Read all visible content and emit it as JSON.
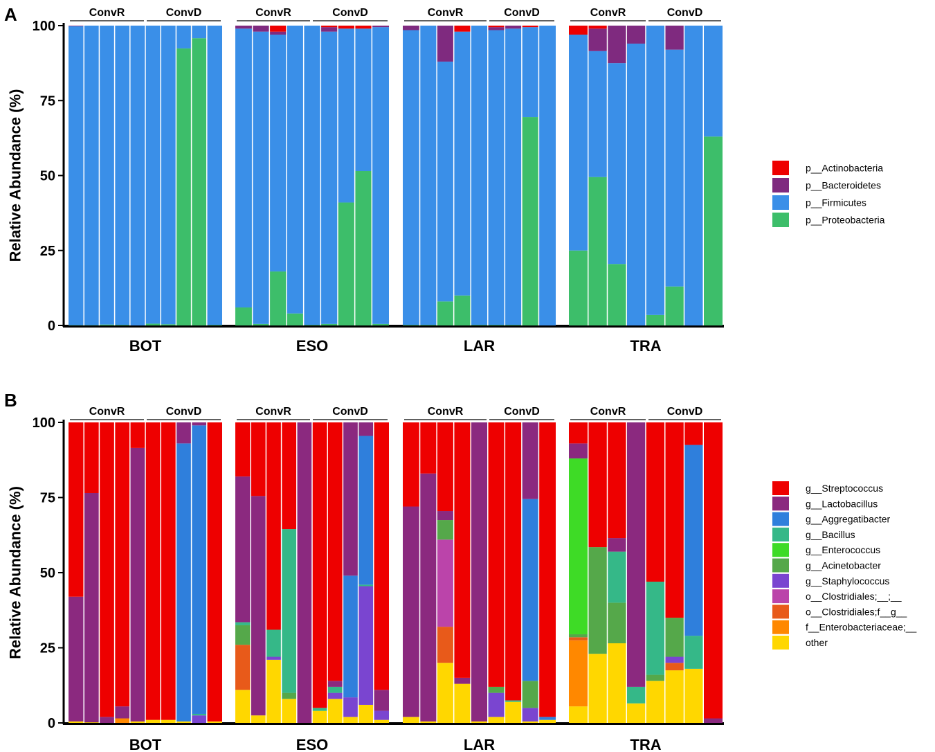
{
  "figure": {
    "panels": [
      "A",
      "B"
    ],
    "sites": [
      "BOT",
      "ESO",
      "LAR",
      "TRA"
    ],
    "groups": [
      "ConvR",
      "ConvD"
    ],
    "ylabel": "Relative Abundance (%)",
    "yticks": [
      "0",
      "25",
      "50",
      "75",
      "100"
    ]
  },
  "chart_data": [
    {
      "type": "bar",
      "stacked": true,
      "panel": "A",
      "title": "",
      "xlabel": "",
      "ylabel": "Relative Abundance (%)",
      "ylim": [
        0,
        100
      ],
      "facets": [
        "BOT",
        "ESO",
        "LAR",
        "TRA"
      ],
      "groups": [
        "ConvR",
        "ConvD"
      ],
      "legend": {
        "position": "right"
      },
      "series": [
        {
          "name": "p__Actinobacteria",
          "color": "#EE0000"
        },
        {
          "name": "p__Bacteroidetes",
          "color": "#7F2A7F"
        },
        {
          "name": "p__Firmicutes",
          "color": "#3A8FE8"
        },
        {
          "name": "p__Proteobacteria",
          "color": "#3DBE6A"
        }
      ],
      "samples": [
        {
          "site": "BOT",
          "group": "ConvR",
          "values": [
            0,
            0.2,
            99.7,
            0.1
          ]
        },
        {
          "site": "BOT",
          "group": "ConvR",
          "values": [
            0,
            0,
            99.9,
            0.1
          ]
        },
        {
          "site": "BOT",
          "group": "ConvR",
          "values": [
            0,
            0,
            99.7,
            0.3
          ]
        },
        {
          "site": "BOT",
          "group": "ConvR",
          "values": [
            0,
            0,
            99.8,
            0.2
          ]
        },
        {
          "site": "BOT",
          "group": "ConvR",
          "values": [
            0,
            0,
            100,
            0
          ]
        },
        {
          "site": "BOT",
          "group": "ConvD",
          "values": [
            0,
            0,
            99.4,
            0.6
          ]
        },
        {
          "site": "BOT",
          "group": "ConvD",
          "values": [
            0,
            0,
            99.6,
            0.4
          ]
        },
        {
          "site": "BOT",
          "group": "ConvD",
          "values": [
            0,
            0,
            7.6,
            92.4
          ]
        },
        {
          "site": "BOT",
          "group": "ConvD",
          "values": [
            0,
            0,
            4.2,
            95.8
          ]
        },
        {
          "site": "BOT",
          "group": "ConvD",
          "values": [
            0,
            0,
            99.8,
            0.2
          ]
        },
        {
          "site": "ESO",
          "group": "ConvR",
          "values": [
            0,
            1,
            93,
            6
          ]
        },
        {
          "site": "ESO",
          "group": "ConvR",
          "values": [
            0,
            2,
            97.5,
            0.5
          ]
        },
        {
          "site": "ESO",
          "group": "ConvR",
          "values": [
            2,
            1,
            79,
            18
          ]
        },
        {
          "site": "ESO",
          "group": "ConvR",
          "values": [
            0,
            0,
            96,
            4
          ]
        },
        {
          "site": "ESO",
          "group": "ConvD",
          "values": [
            0,
            0,
            99.8,
            0.2
          ]
        },
        {
          "site": "ESO",
          "group": "ConvD",
          "values": [
            0.5,
            1.5,
            97.5,
            0.5
          ]
        },
        {
          "site": "ESO",
          "group": "ConvD",
          "values": [
            1,
            0,
            58,
            41
          ]
        },
        {
          "site": "ESO",
          "group": "ConvD",
          "values": [
            1,
            0,
            47.5,
            51.5
          ]
        },
        {
          "site": "ESO",
          "group": "ConvD",
          "values": [
            0,
            0.5,
            99,
            0.5
          ]
        },
        {
          "site": "LAR",
          "group": "ConvR",
          "values": [
            0,
            1.5,
            98.3,
            0.2
          ]
        },
        {
          "site": "LAR",
          "group": "ConvR",
          "values": [
            0,
            0,
            99.8,
            0.2
          ]
        },
        {
          "site": "LAR",
          "group": "ConvR",
          "values": [
            0,
            12,
            80,
            8
          ]
        },
        {
          "site": "LAR",
          "group": "ConvR",
          "values": [
            2,
            0,
            88,
            10
          ]
        },
        {
          "site": "LAR",
          "group": "ConvR",
          "values": [
            0,
            0,
            99.8,
            0.2
          ]
        },
        {
          "site": "LAR",
          "group": "ConvD",
          "values": [
            0.5,
            1,
            98.3,
            0.2
          ]
        },
        {
          "site": "LAR",
          "group": "ConvD",
          "values": [
            0,
            1,
            98.8,
            0.2
          ]
        },
        {
          "site": "LAR",
          "group": "ConvD",
          "values": [
            0.5,
            0,
            30,
            69.5
          ]
        },
        {
          "site": "LAR",
          "group": "ConvD",
          "values": [
            0,
            0,
            100,
            0
          ]
        },
        {
          "site": "TRA",
          "group": "ConvR",
          "values": [
            3,
            0,
            72,
            25
          ]
        },
        {
          "site": "TRA",
          "group": "ConvR",
          "values": [
            1,
            7.5,
            42,
            49.5
          ]
        },
        {
          "site": "TRA",
          "group": "ConvR",
          "values": [
            0,
            12.5,
            67,
            20.5
          ]
        },
        {
          "site": "TRA",
          "group": "ConvR",
          "values": [
            0,
            6,
            94,
            0
          ]
        },
        {
          "site": "TRA",
          "group": "ConvD",
          "values": [
            0,
            0,
            96.5,
            3.5
          ]
        },
        {
          "site": "TRA",
          "group": "ConvD",
          "values": [
            0,
            8,
            79,
            13
          ]
        },
        {
          "site": "TRA",
          "group": "ConvD",
          "values": [
            0,
            0,
            100,
            0
          ]
        },
        {
          "site": "TRA",
          "group": "ConvD",
          "values": [
            0,
            0,
            37,
            63
          ]
        }
      ]
    },
    {
      "type": "bar",
      "stacked": true,
      "panel": "B",
      "title": "",
      "xlabel": "",
      "ylabel": "Relative Abundance (%)",
      "ylim": [
        0,
        100
      ],
      "facets": [
        "BOT",
        "ESO",
        "LAR",
        "TRA"
      ],
      "groups": [
        "ConvR",
        "ConvD"
      ],
      "legend": {
        "position": "right"
      },
      "series": [
        {
          "name": "g__Streptococcus",
          "color": "#EE0000"
        },
        {
          "name": "g__Lactobacillus",
          "color": "#8B297F"
        },
        {
          "name": "g__Aggregatibacter",
          "color": "#2F7FDC"
        },
        {
          "name": "g__Bacillus",
          "color": "#35B888"
        },
        {
          "name": "g__Enterococcus",
          "color": "#3EDB26"
        },
        {
          "name": "g__Acinetobacter",
          "color": "#55A84A"
        },
        {
          "name": "g__Staphylococcus",
          "color": "#7A45D0"
        },
        {
          "name": "o__Clostridiales;__;__",
          "color": "#BB44AA"
        },
        {
          "name": "o__Clostridiales;f__g__",
          "color": "#E85A1A"
        },
        {
          "name": "f__Enterobacteriaceae;__",
          "color": "#FF8800"
        },
        {
          "name": "other",
          "color": "#FFD700"
        }
      ],
      "samples": [
        {
          "site": "BOT",
          "group": "ConvR",
          "values": [
            58,
            41.5,
            0,
            0,
            0,
            0,
            0,
            0,
            0,
            0,
            0.5
          ]
        },
        {
          "site": "BOT",
          "group": "ConvR",
          "values": [
            23.5,
            76.3,
            0,
            0,
            0,
            0,
            0,
            0,
            0,
            0,
            0.2
          ]
        },
        {
          "site": "BOT",
          "group": "ConvR",
          "values": [
            98,
            2,
            0,
            0,
            0,
            0,
            0,
            0,
            0,
            0,
            0
          ]
        },
        {
          "site": "BOT",
          "group": "ConvR",
          "values": [
            94.5,
            4,
            0,
            0,
            0,
            0,
            0,
            0,
            0,
            1.5,
            0
          ]
        },
        {
          "site": "BOT",
          "group": "ConvR",
          "values": [
            8.5,
            91,
            0,
            0,
            0,
            0,
            0,
            0,
            0,
            0,
            0.5
          ]
        },
        {
          "site": "BOT",
          "group": "ConvD",
          "values": [
            99,
            0,
            0,
            0,
            0,
            0,
            0,
            0,
            0,
            0,
            1
          ]
        },
        {
          "site": "BOT",
          "group": "ConvD",
          "values": [
            99,
            0,
            0,
            0,
            0,
            0,
            0,
            0,
            0,
            0,
            1
          ]
        },
        {
          "site": "BOT",
          "group": "ConvD",
          "values": [
            0,
            7,
            92.5,
            0,
            0,
            0,
            0,
            0,
            0,
            0,
            0.5
          ]
        },
        {
          "site": "BOT",
          "group": "ConvD",
          "values": [
            0,
            1,
            96,
            0.5,
            0,
            0,
            2.5,
            0,
            0,
            0,
            0
          ]
        },
        {
          "site": "BOT",
          "group": "ConvD",
          "values": [
            99.5,
            0,
            0,
            0,
            0,
            0,
            0,
            0,
            0,
            0,
            0.5
          ]
        },
        {
          "site": "ESO",
          "group": "ConvR",
          "values": [
            18,
            48.5,
            0,
            1,
            0,
            6.5,
            0,
            0,
            15,
            0,
            11
          ]
        },
        {
          "site": "ESO",
          "group": "ConvR",
          "values": [
            24.5,
            73,
            0,
            0,
            0,
            0,
            0,
            0,
            0,
            0,
            2.5
          ]
        },
        {
          "site": "ESO",
          "group": "ConvR",
          "values": [
            69,
            0,
            0,
            9,
            0,
            0,
            1,
            0,
            0,
            0,
            21
          ]
        },
        {
          "site": "ESO",
          "group": "ConvR",
          "values": [
            35.5,
            0,
            0,
            54.5,
            0,
            2,
            0,
            0,
            0,
            0,
            8
          ]
        },
        {
          "site": "ESO",
          "group": "ConvR",
          "values": [
            0,
            100,
            0,
            0,
            0,
            0,
            0,
            0,
            0,
            0,
            0
          ]
        },
        {
          "site": "ESO",
          "group": "ConvD",
          "values": [
            95,
            0,
            0,
            1,
            0,
            0,
            0,
            0,
            0,
            0,
            4
          ]
        },
        {
          "site": "ESO",
          "group": "ConvD",
          "values": [
            86,
            2,
            0,
            2,
            0,
            0,
            2,
            0,
            0,
            0,
            8
          ]
        },
        {
          "site": "ESO",
          "group": "ConvD",
          "values": [
            0,
            51,
            40.5,
            0,
            0,
            0,
            6.5,
            0,
            0,
            0,
            2
          ]
        },
        {
          "site": "ESO",
          "group": "ConvD",
          "values": [
            0,
            4.5,
            49.5,
            0.5,
            0,
            0,
            39.5,
            0,
            0,
            0,
            6
          ]
        },
        {
          "site": "ESO",
          "group": "ConvD",
          "values": [
            89,
            7,
            0,
            0,
            0,
            0,
            3,
            0,
            0,
            0,
            1
          ]
        },
        {
          "site": "LAR",
          "group": "ConvR",
          "values": [
            28,
            70,
            0,
            0,
            0,
            0,
            0,
            0,
            0,
            0,
            2
          ]
        },
        {
          "site": "LAR",
          "group": "ConvR",
          "values": [
            17,
            82.5,
            0,
            0,
            0,
            0,
            0,
            0,
            0,
            0,
            0.5
          ]
        },
        {
          "site": "LAR",
          "group": "ConvR",
          "values": [
            29.5,
            3,
            0,
            0,
            0,
            6.5,
            0,
            29,
            12,
            0,
            20
          ]
        },
        {
          "site": "LAR",
          "group": "ConvR",
          "values": [
            85,
            2,
            0,
            0,
            0,
            0,
            0,
            0,
            0,
            0,
            13
          ]
        },
        {
          "site": "LAR",
          "group": "ConvR",
          "values": [
            0,
            99.5,
            0,
            0,
            0,
            0,
            0,
            0,
            0,
            0,
            0.5
          ]
        },
        {
          "site": "LAR",
          "group": "ConvD",
          "values": [
            88,
            0,
            0,
            0,
            0,
            2,
            8,
            0,
            0,
            0,
            2
          ]
        },
        {
          "site": "LAR",
          "group": "ConvD",
          "values": [
            92.5,
            0,
            0,
            0.5,
            0,
            0,
            0,
            0,
            0,
            0,
            7
          ]
        },
        {
          "site": "LAR",
          "group": "ConvD",
          "values": [
            0,
            25.5,
            60.5,
            0,
            0,
            9,
            4.5,
            0,
            0,
            0,
            0.5
          ]
        },
        {
          "site": "LAR",
          "group": "ConvD",
          "values": [
            98,
            0,
            1,
            0,
            0,
            0,
            0,
            0,
            0,
            0,
            1
          ]
        },
        {
          "site": "TRA",
          "group": "ConvR",
          "values": [
            7,
            5,
            0,
            0,
            58.5,
            1,
            0,
            0,
            1,
            22,
            5.5
          ]
        },
        {
          "site": "TRA",
          "group": "ConvR",
          "values": [
            41.5,
            0,
            0,
            0,
            0,
            35.5,
            0,
            0,
            0,
            0,
            23
          ]
        },
        {
          "site": "TRA",
          "group": "ConvR",
          "values": [
            38.5,
            4.5,
            0,
            17,
            0,
            13.5,
            0,
            0,
            0,
            0,
            26.5
          ]
        },
        {
          "site": "TRA",
          "group": "ConvR",
          "values": [
            0,
            88,
            0,
            5.5,
            0,
            0,
            0,
            0,
            0,
            0,
            6.5
          ]
        },
        {
          "site": "TRA",
          "group": "ConvD",
          "values": [
            53,
            0,
            0,
            31,
            0,
            2,
            0,
            0,
            0,
            0,
            14
          ]
        },
        {
          "site": "TRA",
          "group": "ConvD",
          "values": [
            65,
            0,
            0,
            0,
            0,
            13,
            2,
            0,
            2.5,
            0,
            17.5
          ]
        },
        {
          "site": "TRA",
          "group": "ConvD",
          "values": [
            7.5,
            0,
            63.5,
            11,
            0,
            0,
            0,
            0,
            0,
            0,
            18
          ]
        },
        {
          "site": "TRA",
          "group": "ConvD",
          "values": [
            98.5,
            1.5,
            0,
            0,
            0,
            0,
            0,
            0,
            0,
            0,
            0
          ]
        }
      ]
    }
  ]
}
